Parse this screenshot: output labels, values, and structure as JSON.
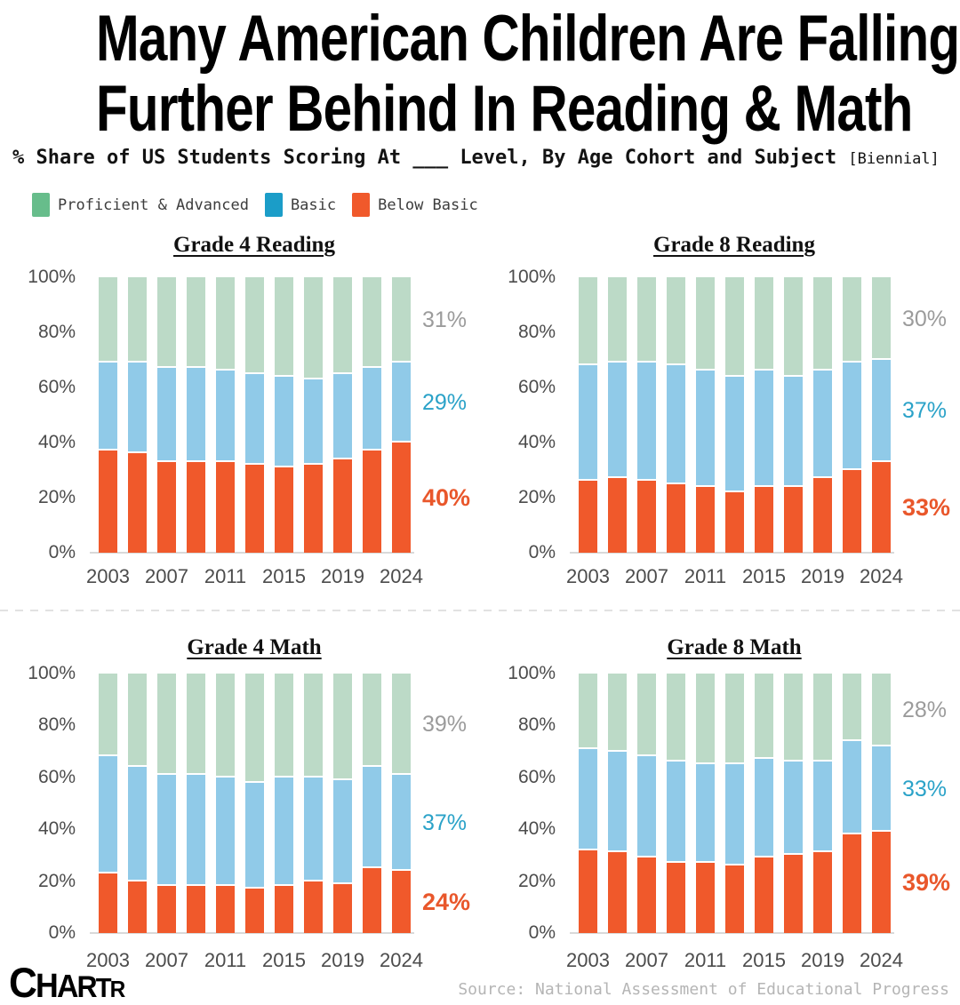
{
  "header": {
    "title_line1": "Many American Children Are Falling",
    "title_line2": "Further Behind In Reading & Math",
    "subtitle": "% Share of US Students Scoring At ___ Level, By Age Cohort and Subject",
    "subtitle_note": "[Biennial]"
  },
  "legend": {
    "items": [
      {
        "label": "Proficient & Advanced",
        "color": "#67BD8B"
      },
      {
        "label": "Basic",
        "color": "#1B9DC8"
      },
      {
        "label": "Below Basic",
        "color": "#F0592B"
      }
    ]
  },
  "colors": {
    "bar_below_basic": "#F0592B",
    "bar_basic": "#90CAE8",
    "bar_proficient": "#BCDAC7",
    "end_label_gray": "#9B9B9B",
    "end_label_blue": "#2AA2C8",
    "end_label_orange": "#E9572B",
    "axis_text": "#4C4C4C"
  },
  "chart_data": [
    {
      "type": "bar",
      "stacked": true,
      "title": "Grade 4 Reading",
      "x": [
        2003,
        2005,
        2007,
        2009,
        2011,
        2013,
        2015,
        2017,
        2019,
        2022,
        2024
      ],
      "x_ticks": [
        {
          "i": 0,
          "label": "2003"
        },
        {
          "i": 2,
          "label": "2007"
        },
        {
          "i": 4,
          "label": "2011"
        },
        {
          "i": 6,
          "label": "2015"
        },
        {
          "i": 8,
          "label": "2019"
        },
        {
          "i": 10,
          "label": "2024"
        }
      ],
      "y_tick_labels": [
        "0%",
        "20%",
        "40%",
        "60%",
        "80%",
        "100%"
      ],
      "ylim": [
        0,
        100
      ],
      "series": [
        {
          "name": "Below Basic",
          "color": "#F0592B",
          "values": [
            37,
            36,
            33,
            33,
            33,
            32,
            31,
            32,
            34,
            37,
            40
          ]
        },
        {
          "name": "Basic",
          "color": "#90CAE8",
          "values": [
            32,
            33,
            34,
            34,
            33,
            33,
            33,
            31,
            31,
            30,
            29
          ]
        },
        {
          "name": "Proficient & Advanced",
          "color": "#BCDAC7",
          "values": [
            31,
            31,
            33,
            33,
            34,
            35,
            36,
            37,
            35,
            33,
            31
          ]
        }
      ],
      "end_labels": [
        {
          "text": "31%",
          "series": "Proficient & Advanced",
          "color": "#9B9B9B",
          "bold": false
        },
        {
          "text": "29%",
          "series": "Basic",
          "color": "#2AA2C8",
          "bold": false
        },
        {
          "text": "40%",
          "series": "Below Basic",
          "color": "#E9572B",
          "bold": true
        }
      ]
    },
    {
      "type": "bar",
      "stacked": true,
      "title": "Grade 8 Reading",
      "x": [
        2003,
        2005,
        2007,
        2009,
        2011,
        2013,
        2015,
        2017,
        2019,
        2022,
        2024
      ],
      "x_ticks": [
        {
          "i": 0,
          "label": "2003"
        },
        {
          "i": 2,
          "label": "2007"
        },
        {
          "i": 4,
          "label": "2011"
        },
        {
          "i": 6,
          "label": "2015"
        },
        {
          "i": 8,
          "label": "2019"
        },
        {
          "i": 10,
          "label": "2024"
        }
      ],
      "y_tick_labels": [
        "0%",
        "20%",
        "40%",
        "60%",
        "80%",
        "100%"
      ],
      "ylim": [
        0,
        100
      ],
      "series": [
        {
          "name": "Below Basic",
          "color": "#F0592B",
          "values": [
            26,
            27,
            26,
            25,
            24,
            22,
            24,
            24,
            27,
            30,
            33
          ]
        },
        {
          "name": "Basic",
          "color": "#90CAE8",
          "values": [
            42,
            42,
            43,
            43,
            42,
            42,
            42,
            40,
            39,
            39,
            37
          ]
        },
        {
          "name": "Proficient & Advanced",
          "color": "#BCDAC7",
          "values": [
            32,
            31,
            31,
            32,
            34,
            36,
            34,
            36,
            34,
            31,
            30
          ]
        }
      ],
      "end_labels": [
        {
          "text": "30%",
          "series": "Proficient & Advanced",
          "color": "#9B9B9B",
          "bold": false
        },
        {
          "text": "37%",
          "series": "Basic",
          "color": "#2AA2C8",
          "bold": false
        },
        {
          "text": "33%",
          "series": "Below Basic",
          "color": "#E9572B",
          "bold": true
        }
      ]
    },
    {
      "type": "bar",
      "stacked": true,
      "title": "Grade 4 Math",
      "x": [
        2003,
        2005,
        2007,
        2009,
        2011,
        2013,
        2015,
        2017,
        2019,
        2022,
        2024
      ],
      "x_ticks": [
        {
          "i": 0,
          "label": "2003"
        },
        {
          "i": 2,
          "label": "2007"
        },
        {
          "i": 4,
          "label": "2011"
        },
        {
          "i": 6,
          "label": "2015"
        },
        {
          "i": 8,
          "label": "2019"
        },
        {
          "i": 10,
          "label": "2024"
        }
      ],
      "y_tick_labels": [
        "0%",
        "20%",
        "40%",
        "60%",
        "80%",
        "100%"
      ],
      "ylim": [
        0,
        100
      ],
      "series": [
        {
          "name": "Below Basic",
          "color": "#F0592B",
          "values": [
            23,
            20,
            18,
            18,
            18,
            17,
            18,
            20,
            19,
            25,
            24
          ]
        },
        {
          "name": "Basic",
          "color": "#90CAE8",
          "values": [
            45,
            44,
            43,
            43,
            42,
            41,
            42,
            40,
            40,
            39,
            37
          ]
        },
        {
          "name": "Proficient & Advanced",
          "color": "#BCDAC7",
          "values": [
            32,
            36,
            39,
            39,
            40,
            42,
            40,
            40,
            41,
            36,
            39
          ]
        }
      ],
      "end_labels": [
        {
          "text": "39%",
          "series": "Proficient & Advanced",
          "color": "#9B9B9B",
          "bold": false
        },
        {
          "text": "37%",
          "series": "Basic",
          "color": "#2AA2C8",
          "bold": false
        },
        {
          "text": "24%",
          "series": "Below Basic",
          "color": "#E9572B",
          "bold": true
        }
      ]
    },
    {
      "type": "bar",
      "stacked": true,
      "title": "Grade 8 Math",
      "x": [
        2003,
        2005,
        2007,
        2009,
        2011,
        2013,
        2015,
        2017,
        2019,
        2022,
        2024
      ],
      "x_ticks": [
        {
          "i": 0,
          "label": "2003"
        },
        {
          "i": 2,
          "label": "2007"
        },
        {
          "i": 4,
          "label": "2011"
        },
        {
          "i": 6,
          "label": "2015"
        },
        {
          "i": 8,
          "label": "2019"
        },
        {
          "i": 10,
          "label": "2024"
        }
      ],
      "y_tick_labels": [
        "0%",
        "20%",
        "40%",
        "60%",
        "80%",
        "100%"
      ],
      "ylim": [
        0,
        100
      ],
      "series": [
        {
          "name": "Below Basic",
          "color": "#F0592B",
          "values": [
            32,
            31,
            29,
            27,
            27,
            26,
            29,
            30,
            31,
            38,
            39
          ]
        },
        {
          "name": "Basic",
          "color": "#90CAE8",
          "values": [
            39,
            39,
            39,
            39,
            38,
            39,
            38,
            36,
            35,
            36,
            33
          ]
        },
        {
          "name": "Proficient & Advanced",
          "color": "#BCDAC7",
          "values": [
            29,
            30,
            32,
            34,
            35,
            35,
            33,
            34,
            34,
            26,
            28
          ]
        }
      ],
      "end_labels": [
        {
          "text": "28%",
          "series": "Proficient & Advanced",
          "color": "#9B9B9B",
          "bold": false
        },
        {
          "text": "33%",
          "series": "Basic",
          "color": "#2AA2C8",
          "bold": false
        },
        {
          "text": "39%",
          "series": "Below Basic",
          "color": "#E9572B",
          "bold": true
        }
      ]
    }
  ],
  "footer": {
    "logo_letters": [
      "C",
      "H",
      "A",
      "R",
      "T",
      "R"
    ],
    "source": "Source: National Assessment of Educational Progress"
  }
}
